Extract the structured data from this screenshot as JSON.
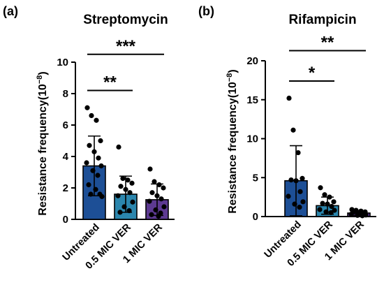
{
  "chart_data": [
    {
      "type": "bar",
      "panel_label": "(a)",
      "title": "Streptomycin",
      "ylabel_main": "Resistance frequency(10",
      "ylabel_exp": "−8",
      "ylabel_close": ")",
      "ylim": [
        0,
        10
      ],
      "yticks": [
        0,
        2,
        4,
        6,
        8,
        10
      ],
      "categories": [
        "Untreated",
        "0.5 MIC VER",
        "1 MIC VER"
      ],
      "values": [
        3.4,
        1.6,
        1.25
      ],
      "errors": [
        1.9,
        1.15,
        1.0
      ],
      "colors": [
        "#1d4f96",
        "#2b86ad",
        "#5d3a92"
      ],
      "points": [
        [
          7.1,
          6.6,
          6.3,
          5.0,
          4.7,
          4.3,
          3.9,
          3.6,
          3.4,
          3.1,
          2.8,
          2.2,
          1.9,
          1.6,
          1.6,
          1.45
        ],
        [
          4.6,
          2.6,
          2.5,
          2.3,
          2.1,
          1.9,
          1.7,
          1.5,
          1.1,
          0.8,
          0.55,
          0.45
        ],
        [
          3.2,
          2.4,
          2.2,
          2.0,
          1.7,
          1.5,
          1.3,
          1.15,
          0.8,
          0.6,
          0.4,
          0.3,
          0.2
        ]
      ],
      "significance": [
        {
          "from": 0,
          "to": 1,
          "y": 8.2,
          "label": "**"
        },
        {
          "from": 0,
          "to": 2,
          "y": 10.5,
          "label": "***"
        }
      ]
    },
    {
      "type": "bar",
      "panel_label": "(b)",
      "title": "Rifampicin",
      "ylabel_main": "Resistance frequency(10",
      "ylabel_exp": "−8",
      "ylabel_close": ")",
      "ylim": [
        0,
        20
      ],
      "yticks": [
        0,
        5,
        10,
        15,
        20
      ],
      "categories": [
        "Untreated",
        "0.5 MIC VER",
        "1 MIC VER"
      ],
      "values": [
        4.6,
        1.4,
        0.45
      ],
      "errors": [
        4.5,
        1.1,
        0.3
      ],
      "colors": [
        "#1d4f96",
        "#2b86ad",
        "#5d3a92"
      ],
      "points": [
        [
          15.2,
          11.1,
          8.2,
          4.9,
          4.7,
          4.6,
          3.2,
          2.6,
          1.9,
          1.6,
          1.2
        ],
        [
          3.7,
          2.8,
          2.5,
          1.9,
          1.7,
          1.6,
          1.3,
          0.9,
          0.8,
          0.6,
          0.5
        ],
        [
          0.9,
          0.8,
          0.7,
          0.6,
          0.6,
          0.5,
          0.4,
          0.3,
          0.2,
          0.15,
          0.1
        ]
      ],
      "significance": [
        {
          "from": 0,
          "to": 1,
          "y": 17.4,
          "label": "*"
        },
        {
          "from": 0,
          "to": 2,
          "y": 21.3,
          "label": "**"
        }
      ]
    }
  ]
}
